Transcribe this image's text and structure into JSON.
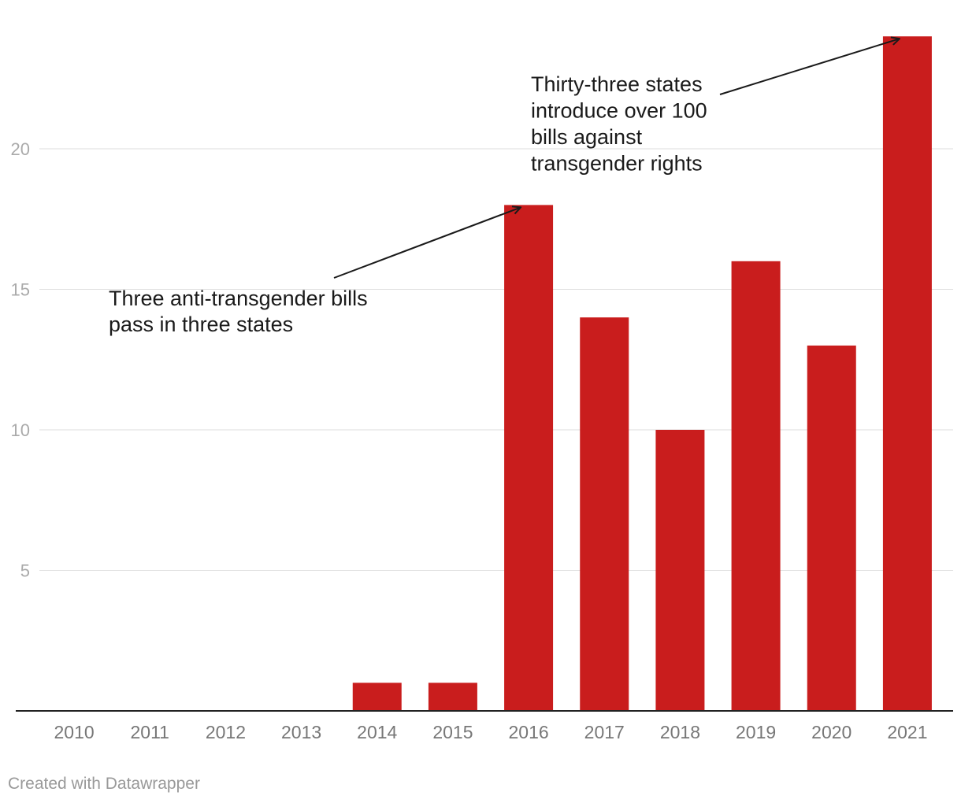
{
  "chart_data": {
    "type": "bar",
    "title": "",
    "xlabel": "",
    "ylabel": "",
    "categories": [
      "2010",
      "2011",
      "2012",
      "2013",
      "2014",
      "2015",
      "2016",
      "2017",
      "2018",
      "2019",
      "2020",
      "2021"
    ],
    "values": [
      0,
      0,
      0,
      0,
      1,
      1,
      18,
      14,
      10,
      16,
      13,
      24
    ],
    "ylim": [
      0,
      24
    ],
    "yticks": [
      5,
      10,
      15,
      20
    ],
    "grid": true,
    "bar_color": "#c91d1d",
    "annotations": [
      {
        "lines": [
          "Three anti-transgender bills",
          "pass in three states"
        ],
        "target_category": "2016",
        "target_value": 18
      },
      {
        "lines": [
          "Thirty-three states",
          "introduce over 100",
          "bills against",
          "transgender rights"
        ],
        "target_category": "2021",
        "target_value": 24
      }
    ]
  },
  "credit": "Created with Datawrapper"
}
